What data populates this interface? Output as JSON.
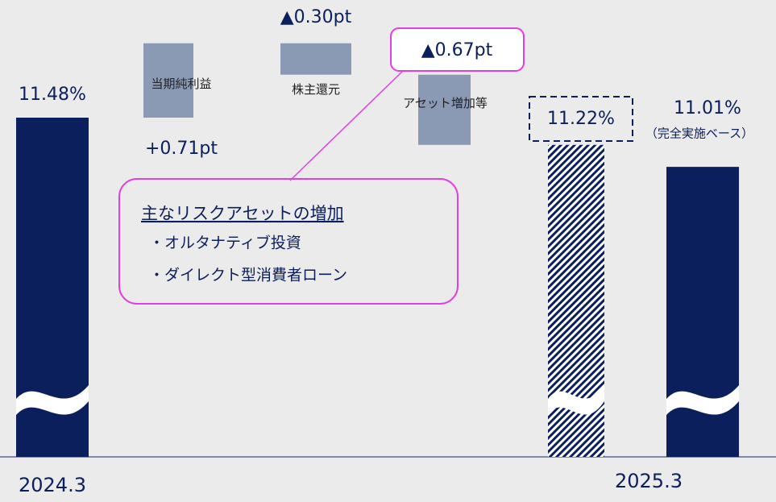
{
  "chart_data": {
    "type": "waterfall",
    "categories": [
      "2024.3",
      "当期純利益",
      "株主還元",
      "アセット増加等",
      null,
      "2025.3"
    ],
    "values": [
      11.48,
      0.71,
      -0.3,
      -0.67,
      11.22,
      11.01
    ],
    "value_labels": [
      "11.48%",
      "+0.71pt",
      "▲0.30pt",
      "▲0.67pt",
      "11.22%",
      "11.01%"
    ],
    "annotation": "（完全実施ベース）",
    "colors": {
      "total": "#0a1f5c",
      "step": "#8a9ab5",
      "highlight": "#e040e0"
    },
    "callout": {
      "title": "主なリスクアセットの増加",
      "items": [
        "・オルタナティブ投資",
        "・ダイレクト型消費者ローン"
      ]
    }
  }
}
